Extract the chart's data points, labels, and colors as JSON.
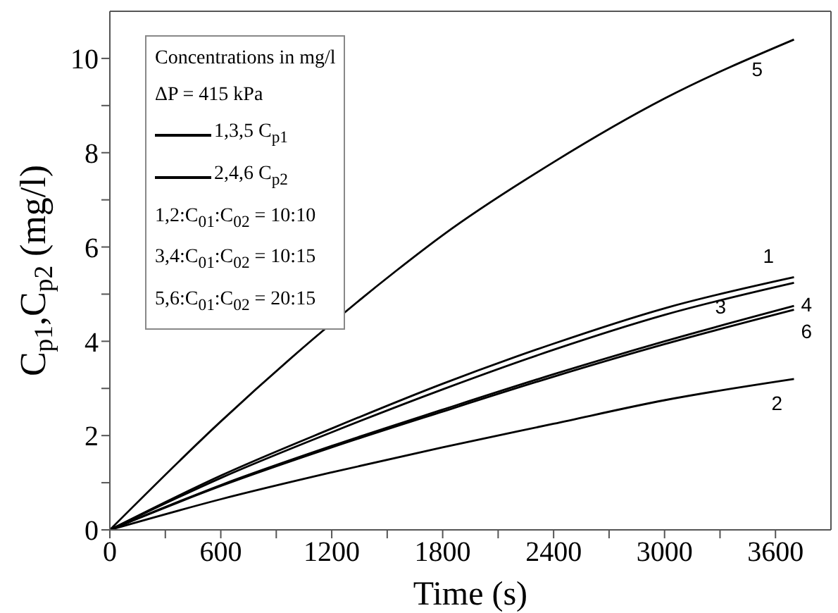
{
  "chart_data": {
    "type": "line",
    "xlabel": "Time (s)",
    "ylabel": "C$_{p1}$,C$_{p2}$ (mg/l)",
    "xlim": [
      0,
      3900
    ],
    "ylim": [
      0,
      11
    ],
    "xticks": [
      0,
      {
        "value": 300,
        "label": null
      },
      600,
      {
        "value": 900,
        "label": null
      },
      1200,
      {
        "value": 1500,
        "label": null
      },
      1800,
      {
        "value": 2100,
        "label": null
      },
      2400,
      {
        "value": 2700,
        "label": null
      },
      3000,
      {
        "value": 3300,
        "label": null
      },
      3600
    ],
    "yticks": [
      0,
      {
        "value": 1,
        "label": null
      },
      2,
      {
        "value": 3,
        "label": null
      },
      4,
      {
        "value": 5,
        "label": null
      },
      6,
      {
        "value": 7,
        "label": null
      },
      8,
      {
        "value": 9,
        "label": null
      },
      10
    ],
    "x": [
      0,
      600,
      1200,
      1800,
      2400,
      3000,
      3700
    ],
    "series": [
      {
        "name": "1",
        "color": "#000000",
        "values": [
          0,
          1.15,
          2.15,
          3.1,
          3.95,
          4.7,
          5.36
        ]
      },
      {
        "name": "2",
        "color": "#000000",
        "values": [
          0,
          0.65,
          1.22,
          1.75,
          2.25,
          2.75,
          3.2
        ]
      },
      {
        "name": "3",
        "color": "#000000",
        "values": [
          0,
          1.1,
          2.07,
          2.98,
          3.82,
          4.56,
          5.24
        ]
      },
      {
        "name": "4",
        "color": "#000000",
        "values": [
          0,
          0.95,
          1.78,
          2.55,
          3.3,
          4.0,
          4.75
        ]
      },
      {
        "name": "5",
        "color": "#000000",
        "x": [
          0,
          600,
          1100,
          1550,
          1800,
          2400,
          3000,
          3700
        ],
        "values": [
          0,
          2.3,
          4.05,
          5.5,
          6.25,
          7.8,
          9.15,
          10.4
        ]
      },
      {
        "name": "6",
        "color": "#000000",
        "values": [
          0,
          0.93,
          1.75,
          2.51,
          3.25,
          3.94,
          4.67
        ]
      }
    ],
    "annotations": [
      "Concentrations in mg/l",
      "ΔP = 415 kPa",
      "1,3,5 C$_{p1}$",
      "2,4,6 C$_{p2}$",
      "1,2:C$_{01}$:C$_{02}$ = 10:10",
      "3,4:C$_{01}$:C$_{02}$ = 10:15",
      "5,6:C$_{01}$:C$_{02}$ = 20:15"
    ],
    "marker": "none",
    "line_style": "solid",
    "grid": false
  }
}
